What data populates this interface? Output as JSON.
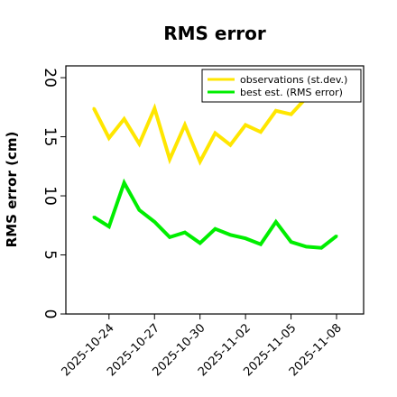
{
  "chart_data": {
    "type": "line",
    "title": "RMS error",
    "xlabel": "",
    "ylabel": "RMS error (cm)",
    "ylim": [
      0,
      21
    ],
    "yticks": [
      0,
      5,
      10,
      15,
      20
    ],
    "x_tick_labels": [
      "2025-10-24",
      "2025-10-27",
      "2025-10-30",
      "2025-11-02",
      "2025-11-05",
      "2025-11-08"
    ],
    "x_tick_highlight_index": 2,
    "x_tick_highlight_color": "#228B22",
    "x_tick_color": "#000000",
    "x_start": "2025-10-23",
    "x_end": "2025-11-08",
    "legend_position": "top-right",
    "series": [
      {
        "name": "observations (st.dev.)",
        "color": "#FFE600",
        "x": [
          "2025-10-23",
          "2025-10-24",
          "2025-10-25",
          "2025-10-26",
          "2025-10-27",
          "2025-10-28",
          "2025-10-29",
          "2025-10-30",
          "2025-10-31",
          "2025-11-01",
          "2025-11-02",
          "2025-11-03",
          "2025-11-04",
          "2025-11-05",
          "2025-11-06"
        ],
        "values": [
          17.4,
          14.9,
          16.5,
          14.4,
          17.4,
          13.1,
          16.0,
          12.9,
          15.3,
          14.3,
          16.0,
          15.4,
          17.2,
          16.9,
          18.3
        ]
      },
      {
        "name": "best est. (RMS error)",
        "color": "#00EE00",
        "x": [
          "2025-10-23",
          "2025-10-24",
          "2025-10-25",
          "2025-10-26",
          "2025-10-27",
          "2025-10-28",
          "2025-10-29",
          "2025-10-30",
          "2025-10-31",
          "2025-11-01",
          "2025-11-02",
          "2025-11-03",
          "2025-11-04",
          "2025-11-05",
          "2025-11-06",
          "2025-11-07",
          "2025-11-08"
        ],
        "values": [
          8.2,
          7.4,
          11.1,
          8.8,
          7.8,
          6.5,
          6.9,
          6.0,
          7.2,
          6.7,
          6.4,
          5.9,
          7.8,
          6.1,
          5.7,
          5.6,
          6.6
        ]
      }
    ]
  }
}
